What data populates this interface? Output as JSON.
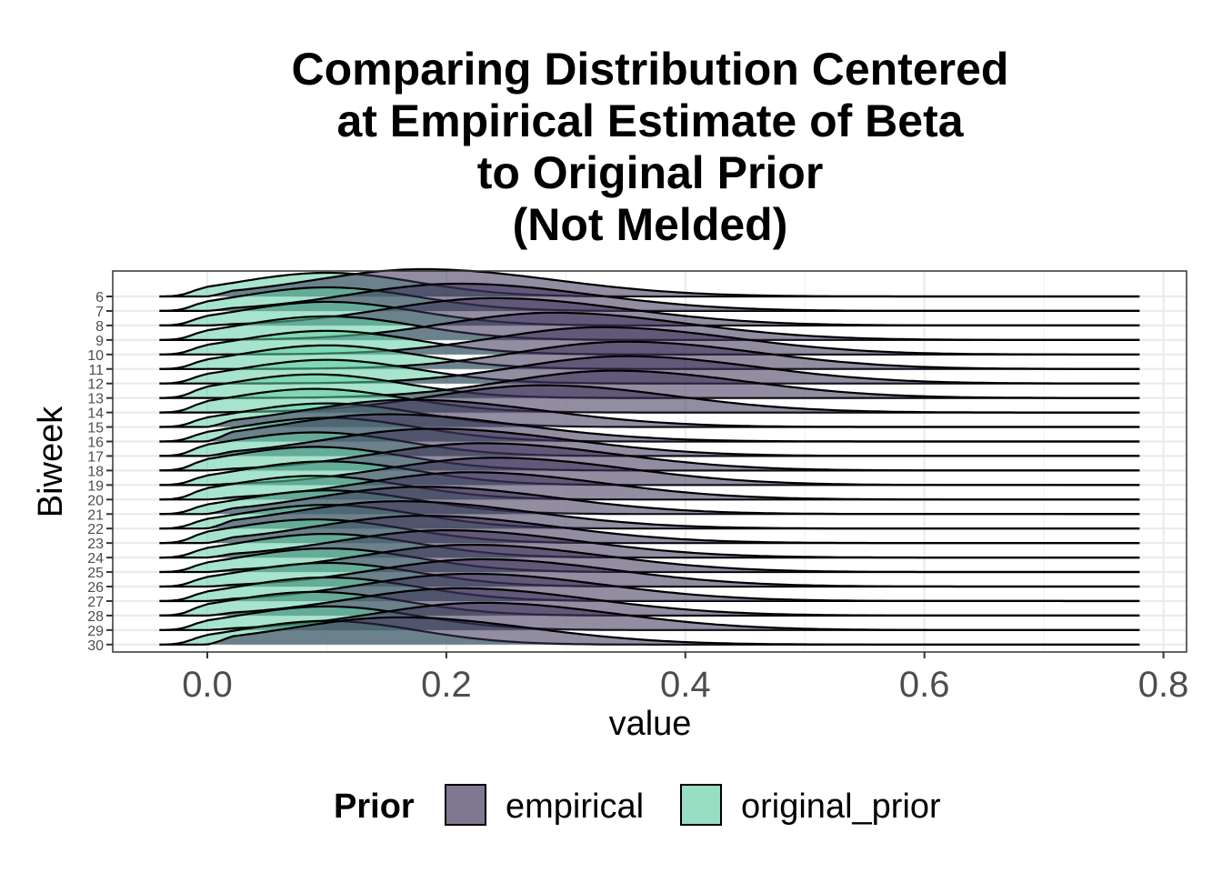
{
  "chart_data": {
    "type": "ridgeline",
    "title_lines": [
      "Comparing Distribution Centered",
      "at Empirical Estimate of Beta",
      "to Original Prior",
      "(Not Melded)"
    ],
    "xlabel": "value",
    "ylabel": "Biweek",
    "xlim": [
      -0.04,
      0.78
    ],
    "x_ticks": [
      "0.0",
      "0.2",
      "0.4",
      "0.6",
      "0.8"
    ],
    "x_tick_values": [
      0.0,
      0.2,
      0.4,
      0.6,
      0.8
    ],
    "grid": true,
    "legend": {
      "title": "Prior",
      "position": "bottom",
      "entries": [
        {
          "label": "empirical",
          "color": "#3b2f55"
        },
        {
          "label": "original_prior",
          "color": "#5fcda4"
        }
      ]
    },
    "colors": {
      "empirical": "#3b2f55",
      "original_prior": "#5fcda4",
      "panel_border": "#333333",
      "grid": "#ebebeb"
    },
    "categories": [
      "6",
      "7",
      "8",
      "9",
      "10",
      "11",
      "12",
      "13",
      "14",
      "15",
      "16",
      "17",
      "18",
      "19",
      "20",
      "21",
      "22",
      "23",
      "24",
      "25",
      "26",
      "27",
      "28",
      "29",
      "30"
    ],
    "series": [
      {
        "name": "original_prior",
        "distribution": "per-biweek peak density location",
        "peaks": [
          0.1,
          0.1,
          0.1,
          0.1,
          0.1,
          0.1,
          0.1,
          0.09,
          0.09,
          0.1,
          0.1,
          0.09,
          0.09,
          0.1,
          0.09,
          0.1,
          0.1,
          0.09,
          0.1,
          0.1,
          0.1,
          0.1,
          0.09,
          0.1,
          0.1
        ]
      },
      {
        "name": "empirical",
        "distribution": "per-biweek peak density location",
        "peaks": [
          0.18,
          0.21,
          0.24,
          0.29,
          0.33,
          0.35,
          0.35,
          0.34,
          0.28,
          0.17,
          0.15,
          0.19,
          0.23,
          0.24,
          0.22,
          0.18,
          0.16,
          0.18,
          0.2,
          0.22,
          0.23,
          0.22,
          0.21,
          0.23,
          0.16
        ]
      }
    ]
  }
}
